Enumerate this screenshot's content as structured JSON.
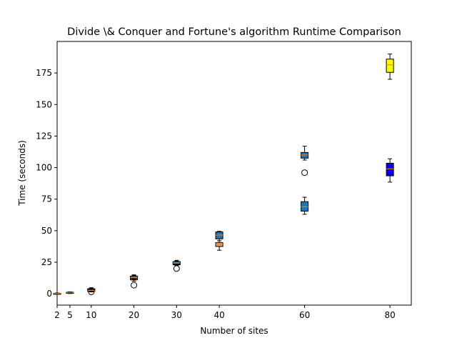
{
  "chart_data": {
    "type": "box",
    "title": "Divide \\& Conquer and Fortune's algorithm Runtime Comparison",
    "xlabel": "Number of sites",
    "ylabel": "Time (seconds)",
    "categories": [
      "2",
      "5",
      "10",
      "20",
      "30",
      "40",
      "60",
      "80"
    ],
    "ylim": [
      -9,
      200
    ],
    "yticks": [
      0,
      25,
      50,
      75,
      100,
      125,
      150,
      175
    ],
    "grid": false,
    "boxes": [
      {
        "category": "2",
        "q1": 0.0,
        "median": 0.2,
        "q3": 0.4,
        "whisker_low": 0.0,
        "whisker_high": 0.6,
        "outliers": [],
        "fill": "#f5a05a"
      },
      {
        "category": "5",
        "q1": 0.4,
        "median": 0.8,
        "q3": 1.2,
        "whisker_low": 0.2,
        "whisker_high": 1.5,
        "outliers": [],
        "fill": "#f5a05a"
      },
      {
        "category": "10",
        "q1": 2.5,
        "median": 3.2,
        "q3": 4.0,
        "whisker_low": 1.8,
        "whisker_high": 4.8,
        "outliers": [
          1.5
        ],
        "fill": "#f5a05a"
      },
      {
        "category": "10",
        "q1": 2.0,
        "median": 2.7,
        "q3": 3.5,
        "whisker_low": 1.5,
        "whisker_high": 4.2,
        "outliers": [],
        "fill": "#1f77b4"
      },
      {
        "category": "20",
        "q1": 11.0,
        "median": 12.0,
        "q3": 13.5,
        "whisker_low": 10.0,
        "whisker_high": 14.5,
        "outliers": [
          6.8
        ],
        "fill": "#f5a05a"
      },
      {
        "category": "20",
        "q1": 12.0,
        "median": 13.0,
        "q3": 14.0,
        "whisker_low": 11.5,
        "whisker_high": 15.0,
        "outliers": [],
        "fill": "#1f77b4"
      },
      {
        "category": "30",
        "q1": 23.0,
        "median": 24.0,
        "q3": 25.0,
        "whisker_low": 22.5,
        "whisker_high": 26.5,
        "outliers": [
          20.0
        ],
        "fill": "#f5a05a"
      },
      {
        "category": "30",
        "q1": 23.5,
        "median": 24.5,
        "q3": 25.5,
        "whisker_low": 23.0,
        "whisker_high": 26.0,
        "outliers": [],
        "fill": "#1f77b4"
      },
      {
        "category": "40",
        "q1": 37.5,
        "median": 39.0,
        "q3": 40.5,
        "whisker_low": 34.5,
        "whisker_high": 42.0,
        "outliers": [],
        "fill": "#f5a05a"
      },
      {
        "category": "40",
        "q1": 43.5,
        "median": 46.5,
        "q3": 49.0,
        "whisker_low": 42.0,
        "whisker_high": 49.5,
        "outliers": [],
        "fill": "#1f77b4"
      },
      {
        "category": "60",
        "q1": 65.5,
        "median": 69.0,
        "q3": 73.0,
        "whisker_low": 63.0,
        "whisker_high": 76.5,
        "outliers": [],
        "fill": "#1f77b4"
      },
      {
        "category": "60",
        "q1": 107.5,
        "median": 110.0,
        "q3": 112.0,
        "whisker_low": 106.0,
        "whisker_high": 117.0,
        "outliers": [
          96.0
        ],
        "fill": "#1f77b4"
      },
      {
        "category": "80",
        "q1": 93.5,
        "median": 99.0,
        "q3": 103.5,
        "whisker_low": 88.5,
        "whisker_high": 107.0,
        "outliers": [],
        "fill": "#0000ff"
      },
      {
        "category": "80",
        "q1": 175.5,
        "median": 181.5,
        "q3": 186.0,
        "whisker_low": 170.0,
        "whisker_high": 190.0,
        "outliers": [],
        "fill": "#ffff00"
      }
    ]
  }
}
